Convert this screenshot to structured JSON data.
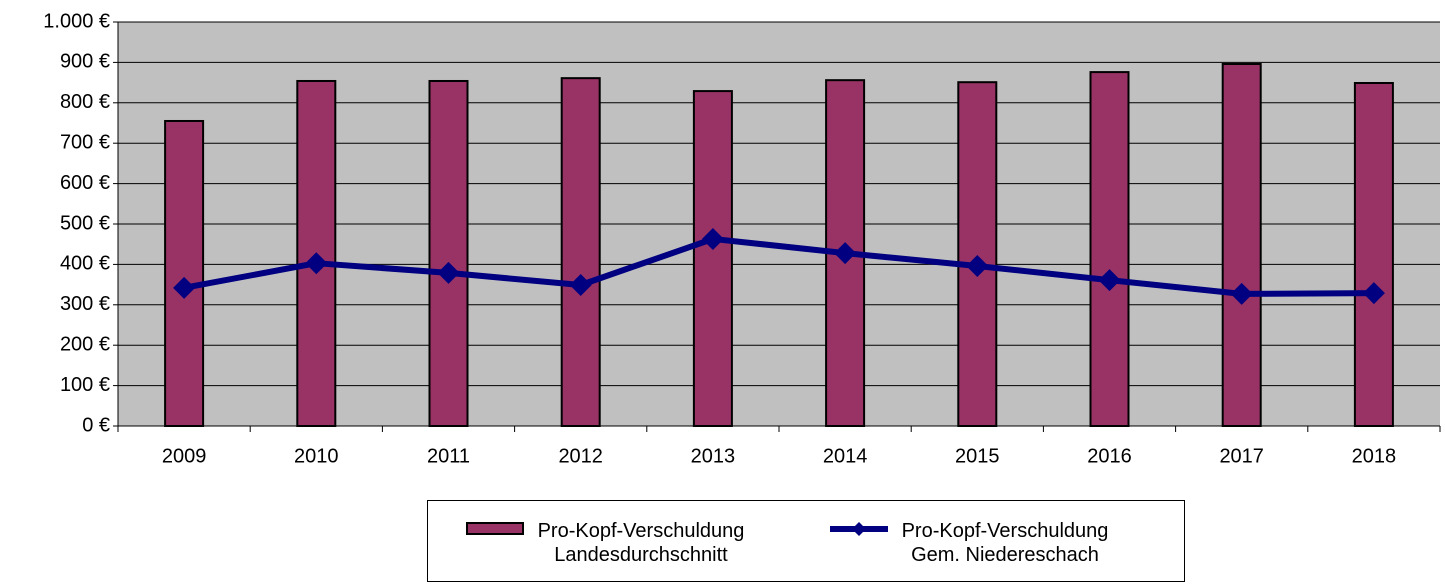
{
  "chart_data": {
    "type": "bar-line",
    "categories": [
      "2009",
      "2010",
      "2011",
      "2012",
      "2013",
      "2014",
      "2015",
      "2016",
      "2017",
      "2018"
    ],
    "series": [
      {
        "name": "Pro-Kopf-Verschuldung Landesdurchschnitt",
        "type": "bar",
        "color": "#993366",
        "values": [
          755,
          854,
          854,
          861,
          829,
          856,
          851,
          876,
          896,
          849
        ]
      },
      {
        "name": "Pro-Kopf-Verschuldung Gem. Niedereschach",
        "type": "line",
        "color": "#000080",
        "values": [
          342,
          403,
          379,
          349,
          463,
          428,
          396,
          361,
          327,
          329
        ]
      }
    ],
    "ylim": [
      0,
      1000
    ],
    "yticks": [
      {
        "value": 0,
        "label": "0 €"
      },
      {
        "value": 100,
        "label": "100 €"
      },
      {
        "value": 200,
        "label": "200 €"
      },
      {
        "value": 300,
        "label": "300 €"
      },
      {
        "value": 400,
        "label": "400 €"
      },
      {
        "value": 500,
        "label": "500 €"
      },
      {
        "value": 600,
        "label": "600 €"
      },
      {
        "value": 700,
        "label": "700 €"
      },
      {
        "value": 800,
        "label": "800 €"
      },
      {
        "value": 900,
        "label": "900 €"
      },
      {
        "value": 1000,
        "label": "1.000 €"
      }
    ],
    "grid": true,
    "plot_background": "#c0c0c0",
    "legend": "bottom"
  }
}
